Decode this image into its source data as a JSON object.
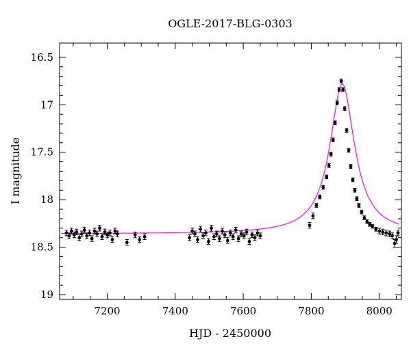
{
  "chart_data": {
    "type": "scatter",
    "title": "OGLE-2017-BLG-0303",
    "xlabel": "HJD - 2450000",
    "ylabel": "I magnitude",
    "xlim": [
      7060,
      8065
    ],
    "ylim": [
      19.05,
      16.35
    ],
    "y_inverted": true,
    "x_ticks": [
      7200,
      7400,
      7600,
      7800,
      8000
    ],
    "y_ticks": [
      16.5,
      17,
      17.5,
      18,
      18.5,
      19
    ],
    "colors": {
      "points": "#000000",
      "model": "#ff00ff"
    },
    "series": [
      {
        "kind": "points_with_errorbars",
        "x": [
          7080,
          7088,
          7095,
          7103,
          7110,
          7118,
          7125,
          7133,
          7140,
          7148,
          7155,
          7163,
          7170,
          7178,
          7185,
          7193,
          7200,
          7208,
          7215,
          7223,
          7230,
          7258,
          7282,
          7295,
          7310,
          7442,
          7450,
          7458,
          7466,
          7474,
          7482,
          7490,
          7498,
          7506,
          7514,
          7522,
          7530,
          7538,
          7546,
          7554,
          7562,
          7570,
          7578,
          7586,
          7594,
          7602,
          7610,
          7618,
          7626,
          7634,
          7642,
          7650,
          7795,
          7805,
          7815,
          7825,
          7835,
          7845,
          7852,
          7858,
          7864,
          7870,
          7876,
          7882,
          7888,
          7893,
          7898,
          7904,
          7910,
          7916,
          7922,
          7928,
          7934,
          7940,
          7948,
          7956,
          7964,
          7972,
          7980,
          7990,
          8000,
          8010,
          8020,
          8030,
          8038,
          8045,
          8050,
          8055
        ],
        "y": [
          18.35,
          18.38,
          18.33,
          18.37,
          18.34,
          18.4,
          18.36,
          18.32,
          18.38,
          18.35,
          18.41,
          18.33,
          18.36,
          18.3,
          18.39,
          18.34,
          18.37,
          18.35,
          18.42,
          18.33,
          18.36,
          18.45,
          18.37,
          18.42,
          18.39,
          18.4,
          18.33,
          18.36,
          18.42,
          18.31,
          18.38,
          18.35,
          18.44,
          18.3,
          18.39,
          18.36,
          18.41,
          18.33,
          18.37,
          18.43,
          18.35,
          18.39,
          18.32,
          18.41,
          18.36,
          18.38,
          18.34,
          18.44,
          18.37,
          18.4,
          18.35,
          18.38,
          18.27,
          18.17,
          18.06,
          17.97,
          17.87,
          17.76,
          17.64,
          17.52,
          17.37,
          17.19,
          16.98,
          16.84,
          16.75,
          16.84,
          17.04,
          17.27,
          17.48,
          17.65,
          17.79,
          17.9,
          17.99,
          18.06,
          18.13,
          18.19,
          18.23,
          18.26,
          18.28,
          18.31,
          18.33,
          18.34,
          18.35,
          18.36,
          18.38,
          18.46,
          18.42,
          18.35
        ],
        "yerr": [
          0.03,
          0.03,
          0.03,
          0.03,
          0.03,
          0.03,
          0.03,
          0.03,
          0.03,
          0.03,
          0.03,
          0.03,
          0.03,
          0.03,
          0.03,
          0.03,
          0.03,
          0.03,
          0.03,
          0.03,
          0.03,
          0.03,
          0.03,
          0.03,
          0.03,
          0.03,
          0.03,
          0.03,
          0.03,
          0.03,
          0.03,
          0.03,
          0.03,
          0.03,
          0.03,
          0.03,
          0.03,
          0.03,
          0.03,
          0.03,
          0.03,
          0.03,
          0.03,
          0.03,
          0.03,
          0.03,
          0.03,
          0.03,
          0.03,
          0.03,
          0.03,
          0.03,
          0.03,
          0.03,
          0.02,
          0.02,
          0.02,
          0.02,
          0.02,
          0.02,
          0.02,
          0.02,
          0.02,
          0.02,
          0.02,
          0.02,
          0.02,
          0.02,
          0.02,
          0.02,
          0.02,
          0.02,
          0.02,
          0.02,
          0.02,
          0.02,
          0.02,
          0.02,
          0.02,
          0.02,
          0.03,
          0.03,
          0.03,
          0.03,
          0.03,
          0.04,
          0.04,
          0.03
        ]
      },
      {
        "kind": "model_curve",
        "baseline": 18.36,
        "peak_x": 7891,
        "peak_y": 16.78,
        "width": 44,
        "color": "#ff00ff"
      }
    ],
    "grid": false,
    "legend": "none"
  }
}
